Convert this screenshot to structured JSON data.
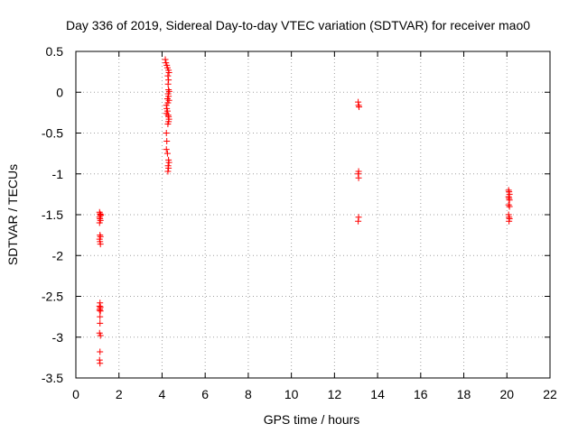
{
  "chart_data": {
    "type": "scatter",
    "title": "Day 336 of 2019, Sidereal Day-to-day VTEC variation (SDTVAR) for receiver mao0",
    "xlabel": "GPS time / hours",
    "ylabel": "SDTVAR / TECUs",
    "xlim": [
      0,
      22
    ],
    "ylim": [
      -3.5,
      0.5
    ],
    "xticks": [
      0,
      2,
      4,
      6,
      8,
      10,
      12,
      14,
      16,
      18,
      20,
      22
    ],
    "xtick_labels": [
      "0",
      "2",
      "4",
      "6",
      "8",
      "10",
      "12",
      "14",
      "16",
      "18",
      "20",
      "22"
    ],
    "yticks": [
      0.5,
      0,
      -0.5,
      -1,
      -1.5,
      -2,
      -2.5,
      -3,
      -3.5
    ],
    "ytick_labels": [
      "0.5",
      "0",
      "-0.5",
      "-1",
      "-1.5",
      "-2",
      "-2.5",
      "-3",
      "-3.5"
    ],
    "grid": true,
    "marker": "+",
    "color": "#ff0000",
    "series": [
      {
        "name": "SDTVAR",
        "points": [
          [
            1.1,
            -1.47
          ],
          [
            1.12,
            -1.49
          ],
          [
            1.14,
            -1.51
          ],
          [
            1.1,
            -1.53
          ],
          [
            1.12,
            -1.55
          ],
          [
            1.14,
            -1.57
          ],
          [
            1.16,
            -1.5
          ],
          [
            1.1,
            -1.6
          ],
          [
            1.12,
            -1.75
          ],
          [
            1.14,
            -1.77
          ],
          [
            1.1,
            -1.8
          ],
          [
            1.12,
            -1.83
          ],
          [
            1.14,
            -1.86
          ],
          [
            1.12,
            -2.58
          ],
          [
            1.1,
            -2.62
          ],
          [
            1.14,
            -2.63
          ],
          [
            1.12,
            -2.65
          ],
          [
            1.1,
            -2.67
          ],
          [
            1.14,
            -2.68
          ],
          [
            1.12,
            -2.75
          ],
          [
            1.12,
            -2.83
          ],
          [
            1.1,
            -2.95
          ],
          [
            1.14,
            -2.98
          ],
          [
            1.12,
            -3.18
          ],
          [
            1.1,
            -3.28
          ],
          [
            1.12,
            -3.32
          ],
          [
            4.15,
            0.4
          ],
          [
            4.18,
            0.36
          ],
          [
            4.22,
            0.33
          ],
          [
            4.25,
            0.3
          ],
          [
            4.3,
            0.27
          ],
          [
            4.32,
            0.24
          ],
          [
            4.27,
            0.2
          ],
          [
            4.3,
            0.15
          ],
          [
            4.28,
            0.1
          ],
          [
            4.3,
            0.03
          ],
          [
            4.33,
            0.01
          ],
          [
            4.28,
            -0.02
          ],
          [
            4.3,
            -0.05
          ],
          [
            4.25,
            -0.08
          ],
          [
            4.32,
            -0.1
          ],
          [
            4.27,
            -0.13
          ],
          [
            4.2,
            -0.16
          ],
          [
            4.22,
            -0.2
          ],
          [
            4.25,
            -0.23
          ],
          [
            4.2,
            -0.26
          ],
          [
            4.28,
            -0.28
          ],
          [
            4.3,
            -0.3
          ],
          [
            4.32,
            -0.33
          ],
          [
            4.3,
            -0.36
          ],
          [
            4.27,
            -0.39
          ],
          [
            4.2,
            -0.5
          ],
          [
            4.22,
            -0.6
          ],
          [
            4.2,
            -0.7
          ],
          [
            4.25,
            -0.75
          ],
          [
            4.3,
            -0.83
          ],
          [
            4.32,
            -0.86
          ],
          [
            4.28,
            -0.9
          ],
          [
            4.3,
            -0.93
          ],
          [
            4.27,
            -0.97
          ],
          [
            13.1,
            -0.12
          ],
          [
            13.12,
            -0.16
          ],
          [
            13.14,
            -0.18
          ],
          [
            13.12,
            -0.97
          ],
          [
            13.1,
            -1.0
          ],
          [
            13.12,
            -1.05
          ],
          [
            13.12,
            -1.53
          ],
          [
            13.1,
            -1.58
          ],
          [
            20.08,
            -1.2
          ],
          [
            20.1,
            -1.22
          ],
          [
            20.12,
            -1.25
          ],
          [
            20.08,
            -1.28
          ],
          [
            20.1,
            -1.3
          ],
          [
            20.12,
            -1.32
          ],
          [
            20.08,
            -1.38
          ],
          [
            20.12,
            -1.4
          ],
          [
            20.08,
            -1.5
          ],
          [
            20.1,
            -1.53
          ],
          [
            20.12,
            -1.55
          ],
          [
            20.1,
            -1.58
          ]
        ]
      }
    ]
  }
}
